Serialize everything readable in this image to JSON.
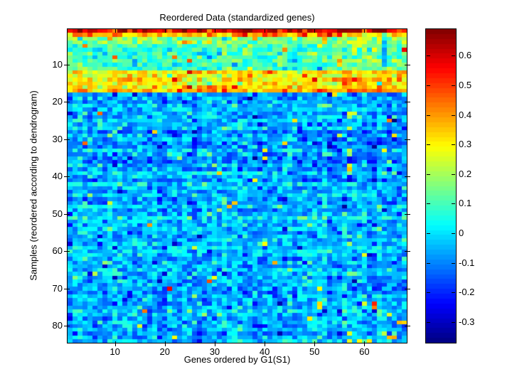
{
  "window": {
    "background": "#ffffff",
    "axes_color": "#000000"
  },
  "chart_data": {
    "type": "heatmap",
    "title": "Reordered Data (standardized genes)",
    "xlabel": "Genes ordered by G1(S1)",
    "ylabel": "Samples (reordered according to dendrogram)",
    "n_cols": 68,
    "n_rows": 84,
    "x_ticks": [
      10,
      20,
      30,
      40,
      50,
      60
    ],
    "y_ticks": [
      10,
      20,
      30,
      40,
      50,
      60,
      70,
      80
    ],
    "colormap": "jet",
    "vmin": -0.37,
    "vmax": 0.69,
    "colorbar_ticks": [
      0.6,
      0.5,
      0.4,
      0.3,
      0.2,
      0.1,
      0,
      -0.1,
      -0.2,
      -0.3
    ],
    "grid": false,
    "colorbar_position": "right",
    "structure_note": "Warm high-value cluster in rows 1-17 (row 1 deep red ~0.6, row 2 orange ~0.35, rows 3-11 green-cyan ~0.1, rows 12-16 yellow-green ~0.26, row 17 yellow-orange ~0.38); rows 18-84 are a cool cyan/blue block centered near -0.05 with scattered dark blue and rare yellow-green speckles.",
    "generation": {
      "seed": 1234,
      "col_jitter_sd": 0.018,
      "row_jitter_sd": 0.028,
      "bands": [
        {
          "row_start": 1,
          "row_end": 1,
          "mean": 0.58,
          "sd": 0.055,
          "outliers": [
            {
              "prob": 0.1,
              "mean": 0.67,
              "sd": 0.02
            },
            {
              "prob": 0.1,
              "mean": 0.45,
              "sd": 0.03
            }
          ]
        },
        {
          "row_start": 2,
          "row_end": 2,
          "mean": 0.34,
          "sd": 0.06,
          "outliers": [
            {
              "prob": 0.06,
              "mean": 0.55,
              "sd": 0.04
            }
          ]
        },
        {
          "row_start": 3,
          "row_end": 4,
          "mean": 0.16,
          "sd": 0.07,
          "outliers": [
            {
              "prob": 0.04,
              "mean": 0.38,
              "sd": 0.05
            }
          ]
        },
        {
          "row_start": 5,
          "row_end": 11,
          "mean": 0.1,
          "sd": 0.07,
          "outliers": [
            {
              "prob": 0.025,
              "mean": 0.4,
              "sd": 0.07
            },
            {
              "prob": 0.02,
              "mean": -0.1,
              "sd": 0.04
            }
          ]
        },
        {
          "row_start": 12,
          "row_end": 16,
          "mean": 0.26,
          "sd": 0.07,
          "outliers": [
            {
              "prob": 0.035,
              "mean": 0.52,
              "sd": 0.05
            },
            {
              "prob": 0.02,
              "mean": 0.02,
              "sd": 0.04
            }
          ]
        },
        {
          "row_start": 17,
          "row_end": 17,
          "mean": 0.38,
          "sd": 0.055,
          "outliers": [
            {
              "prob": 0.1,
              "mean": 0.52,
              "sd": 0.04
            }
          ]
        },
        {
          "row_start": 18,
          "row_end": 84,
          "mean": -0.05,
          "sd": 0.07,
          "outliers": [
            {
              "prob": 0.012,
              "mean": 0.28,
              "sd": 0.12
            },
            {
              "prob": 0.013,
              "mean": -0.28,
              "sd": 0.04
            }
          ]
        }
      ],
      "patches": [
        {
          "row_start": 25,
          "row_end": 43,
          "col_start": 47,
          "col_end": 62,
          "delta": -0.05
        },
        {
          "row_start": 3,
          "row_end": 17,
          "col_start": 56,
          "col_end": 68,
          "delta": 0.05
        },
        {
          "row_start": 2,
          "row_end": 10,
          "col_start": 64,
          "col_end": 64,
          "delta": -0.2
        },
        {
          "row_start": 57,
          "row_end": 72,
          "col_start": 36,
          "col_end": 37,
          "delta": -0.06
        },
        {
          "row_start": 19,
          "row_end": 42,
          "col_start": 57,
          "col_end": 57,
          "speck_prob": 0.35,
          "speck_mean": 0.24,
          "speck_sd": 0.1
        },
        {
          "row_start": 74,
          "row_end": 84,
          "col_start": 57,
          "col_end": 68,
          "speck_prob": 0.07,
          "speck_mean": 0.3,
          "speck_sd": 0.1
        }
      ]
    }
  }
}
